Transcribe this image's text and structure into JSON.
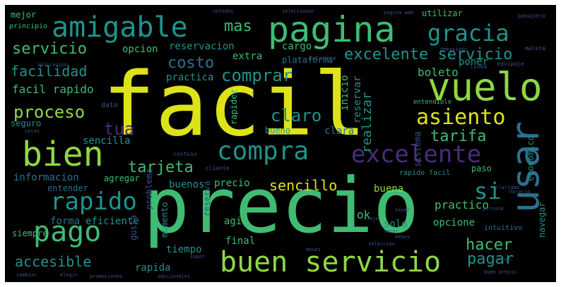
{
  "palette": {
    "yellow": "#dde318",
    "lime": "#8fd744",
    "green": "#3fbc73",
    "teal": "#20928c",
    "blue": "#2d708e",
    "indigo": "#3b528b",
    "purple": "#472d7b",
    "dark": "#440154"
  },
  "words": [
    {
      "text": "facil",
      "color": "yellow"
    },
    {
      "text": "precio",
      "color": "green"
    },
    {
      "text": "pagina",
      "color": "green"
    },
    {
      "text": "amigable",
      "color": "teal"
    },
    {
      "text": "vuelo",
      "color": "lime"
    },
    {
      "text": "usar",
      "color": "blue"
    },
    {
      "text": "bien",
      "color": "lime"
    },
    {
      "text": "compra",
      "color": "teal"
    },
    {
      "text": "excelente",
      "color": "purple"
    },
    {
      "text": "buen servicio",
      "color": "lime"
    },
    {
      "text": "pago",
      "color": "green"
    },
    {
      "text": "rapido",
      "color": "teal"
    },
    {
      "text": "gracia",
      "color": "teal"
    },
    {
      "text": "asiento",
      "color": "yellow"
    },
    {
      "text": "excelente servicio",
      "color": "teal"
    },
    {
      "text": "servicio",
      "color": "green"
    },
    {
      "text": "facilidad",
      "color": "teal"
    },
    {
      "text": "proceso",
      "color": "lime"
    },
    {
      "text": "comprar",
      "color": "teal"
    },
    {
      "text": "costo",
      "color": "blue"
    },
    {
      "text": "mas",
      "color": "green"
    },
    {
      "text": "claro",
      "color": "teal"
    },
    {
      "text": "tarifa",
      "color": "green"
    },
    {
      "text": "tua",
      "color": "purple"
    },
    {
      "text": "tarjeta",
      "color": "green"
    },
    {
      "text": "si",
      "color": "teal"
    },
    {
      "text": "hacer",
      "color": "green"
    },
    {
      "text": "pagar",
      "color": "teal"
    },
    {
      "text": "accesible",
      "color": "teal"
    },
    {
      "text": "sencillo",
      "color": "yellow"
    },
    {
      "text": "mejor",
      "color": "green"
    },
    {
      "text": "principio",
      "color": "green"
    },
    {
      "text": "opcion",
      "color": "green"
    },
    {
      "text": "reservacion",
      "color": "teal"
    },
    {
      "text": "extra",
      "color": "green"
    },
    {
      "text": "cargo",
      "color": "green"
    },
    {
      "text": "facil rapido",
      "color": "green"
    },
    {
      "text": "practica",
      "color": "teal"
    },
    {
      "text": "boleto",
      "color": "green"
    },
    {
      "text": "poner",
      "color": "teal"
    },
    {
      "text": "seguro",
      "color": "teal"
    },
    {
      "text": "sencilla",
      "color": "teal"
    },
    {
      "text": "informacion",
      "color": "blue"
    },
    {
      "text": "entender",
      "color": "blue"
    },
    {
      "text": "agregar",
      "color": "green"
    },
    {
      "text": "buenos",
      "color": "teal"
    },
    {
      "text": "precio",
      "color": "green"
    },
    {
      "text": "buena",
      "color": "lime"
    },
    {
      "text": "forma",
      "color": "blue"
    },
    {
      "text": "eficiente",
      "color": "teal"
    },
    {
      "text": "siempre",
      "color": "green"
    },
    {
      "text": "practico",
      "color": "green"
    },
    {
      "text": "opcione",
      "color": "green"
    },
    {
      "text": "agil",
      "color": "green"
    },
    {
      "text": "solo",
      "color": "teal"
    },
    {
      "text": "ok",
      "color": "green"
    },
    {
      "text": "final",
      "color": "green"
    },
    {
      "text": "tiempo",
      "color": "teal"
    },
    {
      "text": "rapida",
      "color": "teal"
    },
    {
      "text": "utilizar",
      "color": "green"
    },
    {
      "text": "plataforma",
      "color": "blue"
    },
    {
      "text": "inicio",
      "color": "green"
    },
    {
      "text": "reservar",
      "color": "teal"
    },
    {
      "text": "realizar",
      "color": "teal"
    },
    {
      "text": "rapidez",
      "color": "green"
    },
    {
      "text": "momento",
      "color": "teal"
    },
    {
      "text": "problema",
      "color": "indigo"
    },
    {
      "text": "bueno",
      "color": "teal"
    },
    {
      "text": "clara",
      "color": "blue"
    },
    {
      "text": "sistema",
      "color": "indigo"
    },
    {
      "text": "paso",
      "color": "green"
    },
    {
      "text": "navegar",
      "color": "teal"
    },
    {
      "text": "economico",
      "color": "teal"
    },
    {
      "text": "reserva",
      "color": "indigo"
    },
    {
      "text": "gusta",
      "color": "indigo"
    },
    {
      "text": "rapido facil",
      "color": "teal"
    },
    {
      "text": "intuitivo",
      "color": "blue"
    },
    {
      "text": "dato",
      "color": "indigo"
    },
    {
      "text": "entendible",
      "color": "green"
    },
    {
      "text": "interese",
      "color": "indigo"
    },
    {
      "text": "linea",
      "color": "indigo"
    },
    {
      "text": "equipaje",
      "color": "indigo"
    },
    {
      "text": "confuso",
      "color": "indigo"
    },
    {
      "text": "cliente",
      "color": "indigo"
    },
    {
      "text": "aplicacion",
      "color": "indigo"
    },
    {
      "text": "demasiado",
      "color": "indigo"
    },
    {
      "text": "maleta",
      "color": "indigo"
    },
    {
      "text": "pasajero",
      "color": "indigo"
    },
    {
      "text": "ustedes",
      "color": "indigo"
    },
    {
      "text": "seleccionar",
      "color": "indigo"
    },
    {
      "text": "pagina web",
      "color": "indigo"
    },
    {
      "text": "menos",
      "color": "indigo"
    },
    {
      "text": "super",
      "color": "indigo"
    },
    {
      "text": "meses",
      "color": "indigo"
    },
    {
      "text": "seleccion",
      "color": "indigo"
    },
    {
      "text": "viaje",
      "color": "indigo"
    },
    {
      "text": "hacer",
      "color": "indigo"
    },
    {
      "text": "tener",
      "color": "indigo"
    },
    {
      "text": "veces",
      "color": "indigo"
    },
    {
      "text": "cobran",
      "color": "indigo"
    },
    {
      "text": "buen precio",
      "color": "indigo"
    },
    {
      "text": "promociones",
      "color": "indigo"
    },
    {
      "text": "elegir",
      "color": "indigo"
    },
    {
      "text": "cambiar",
      "color": "indigo"
    },
    {
      "text": "adicionales",
      "color": "indigo"
    },
    {
      "text": "horario",
      "color": "indigo"
    },
    {
      "text": "claridad",
      "color": "indigo"
    },
    {
      "text": "persona",
      "color": "indigo"
    }
  ]
}
